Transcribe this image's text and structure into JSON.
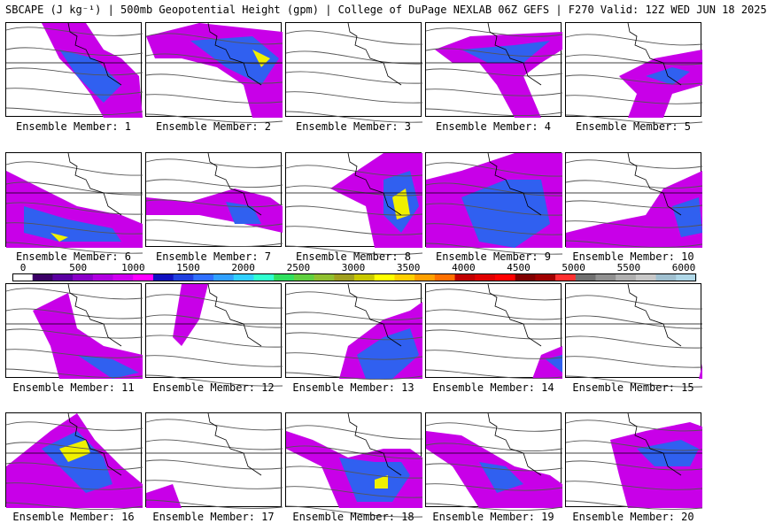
{
  "title": "SBCAPE (J kg⁻¹) | 500mb Geopotential Height (gpm) | College of DuPage NEXLAB 06Z GEFS | F270 Valid: 12Z WED JUN 18 2025",
  "members": [
    "Ensemble Member: 1",
    "Ensemble Member: 2",
    "Ensemble Member: 3",
    "Ensemble Member: 4",
    "Ensemble Member: 5",
    "Ensemble Member: 6",
    "Ensemble Member: 7",
    "Ensemble Member: 8",
    "Ensemble Member: 9",
    "Ensemble Member: 10",
    "Ensemble Member: 11",
    "Ensemble Member: 12",
    "Ensemble Member: 13",
    "Ensemble Member: 14",
    "Ensemble Member: 15",
    "Ensemble Member: 16",
    "Ensemble Member: 17",
    "Ensemble Member: 18",
    "Ensemble Member: 19",
    "Ensemble Member: 20"
  ],
  "colorbar": {
    "ticks": [
      "0",
      "500",
      "1000",
      "1500",
      "2000",
      "2500",
      "3000",
      "3500",
      "4000",
      "4500",
      "5000",
      "5500",
      "6000"
    ],
    "colors": [
      "#ffffff",
      "#3b0066",
      "#5a00a0",
      "#8a00c8",
      "#b000e0",
      "#d000f0",
      "#ff00ff",
      "#1010c0",
      "#2040e0",
      "#3070ff",
      "#30a0ff",
      "#30d0ff",
      "#30ffd0",
      "#30e060",
      "#60d040",
      "#90c030",
      "#a0a020",
      "#c8c800",
      "#ffff00",
      "#ffd000",
      "#ffa000",
      "#ff7000",
      "#c00000",
      "#e00000",
      "#ff0000",
      "#800000",
      "#a00000",
      "#ff3030",
      "#707070",
      "#909090",
      "#b0b0b0",
      "#c8c8c8",
      "#a0c0d0",
      "#b0d8e8"
    ]
  }
}
